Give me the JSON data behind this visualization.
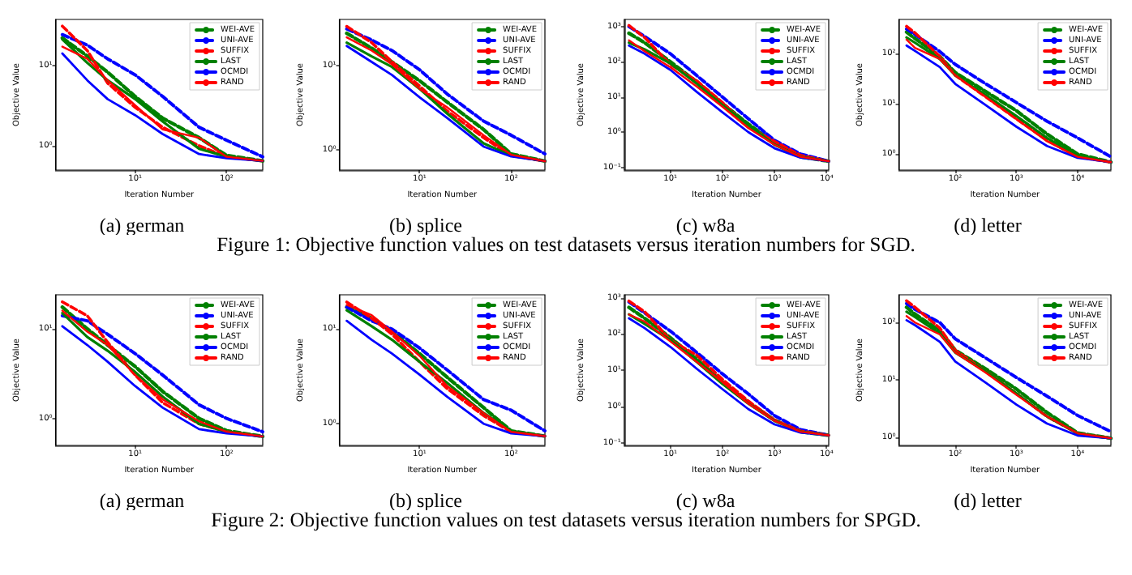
{
  "chart_data": [
    {
      "type": "line",
      "title": "(a) german",
      "xlabel": "Iteration Number",
      "ylabel": "Objective Value",
      "log": "xy",
      "legend": "top right",
      "annotations": [
        "Figure 1: Objective function values on test datasets versus iteration numbers for SGD."
      ],
      "x": [
        1.6,
        3,
        5,
        10,
        20,
        50,
        100,
        248
      ],
      "xlim": [
        1.35,
        248
      ],
      "xticks": [
        {
          "value": 10,
          "label": "10¹"
        },
        {
          "value": 100,
          "label": "10²"
        }
      ],
      "ylim": [
        0.5,
        37
      ],
      "yticks": [
        {
          "value": 1,
          "label": "10⁰"
        },
        {
          "value": 10,
          "label": "10¹"
        }
      ],
      "series": [
        {
          "name": "WEI-AVE",
          "color": "#008000",
          "line_style": "dashed",
          "values": [
            21.8,
            13,
            8.2,
            4.1,
            2.2,
            1.26,
            0.76,
            0.65
          ]
        },
        {
          "name": "UNI-AVE",
          "color": "#0000ff",
          "line_style": "dashed",
          "values": [
            24,
            17.8,
            12,
            7.6,
            4.1,
            1.7,
            1.17,
            0.73
          ]
        },
        {
          "name": "SUFFIX",
          "color": "#ff0000",
          "line_style": "dashed",
          "values": [
            30.6,
            15.2,
            6.0,
            3.0,
            1.7,
            1.0,
            0.73,
            0.65
          ]
        },
        {
          "name": "LAST",
          "color": "#008000",
          "line_style": "solid",
          "values": [
            21,
            10.7,
            6.5,
            3.8,
            2.0,
            0.92,
            0.73,
            0.65
          ]
        },
        {
          "name": "OCMDI",
          "color": "#0000ff",
          "line_style": "solid",
          "values": [
            14,
            6.5,
            3.8,
            2.4,
            1.4,
            0.79,
            0.7,
            0.65
          ]
        },
        {
          "name": "RAND",
          "color": "#ff0000",
          "line_style": "solid",
          "values": [
            17,
            12,
            6.5,
            3.2,
            1.6,
            1.26,
            0.73,
            0.65
          ]
        }
      ]
    },
    {
      "type": "line",
      "title": "(b) splice",
      "xlabel": "Iteration Number",
      "ylabel": "Objective Value",
      "log": "xy",
      "legend": "top right",
      "x": [
        1.6,
        3,
        5,
        10,
        20,
        50,
        100,
        234
      ],
      "xlim": [
        1.33,
        234
      ],
      "xticks": [
        {
          "value": 10,
          "label": "10¹"
        },
        {
          "value": 100,
          "label": "10²"
        }
      ],
      "ylim": [
        0.58,
        35
      ],
      "yticks": [
        {
          "value": 1,
          "label": "10⁰"
        },
        {
          "value": 10,
          "label": "10¹"
        }
      ],
      "series": [
        {
          "name": "WEI-AVE",
          "color": "#008000",
          "line_style": "dashed",
          "values": [
            24,
            16,
            11,
            6.6,
            3.7,
            1.75,
            0.9,
            0.74
          ]
        },
        {
          "name": "UNI-AVE",
          "color": "#0000ff",
          "line_style": "dashed",
          "values": [
            27,
            20,
            15,
            8.9,
            4.6,
            2.2,
            1.5,
            0.9
          ]
        },
        {
          "name": "SUFFIX",
          "color": "#ff0000",
          "line_style": "dashed",
          "values": [
            29,
            18.6,
            11,
            5.7,
            2.9,
            1.4,
            0.86,
            0.74
          ]
        },
        {
          "name": "LAST",
          "color": "#008000",
          "line_style": "solid",
          "values": [
            18.6,
            12.8,
            9.6,
            5.3,
            2.7,
            1.2,
            0.86,
            0.74
          ]
        },
        {
          "name": "OCMDI",
          "color": "#0000ff",
          "line_style": "solid",
          "values": [
            17,
            11,
            7.7,
            4.2,
            2.4,
            1.1,
            0.84,
            0.74
          ]
        },
        {
          "name": "RAND",
          "color": "#ff0000",
          "line_style": "solid",
          "values": [
            21.5,
            15,
            10.3,
            5.3,
            3.2,
            1.5,
            0.88,
            0.74
          ]
        }
      ]
    },
    {
      "type": "line",
      "title": "(c) w8a",
      "xlabel": "Iteration Number",
      "ylabel": "Objective Value",
      "log": "xy",
      "legend": "top right",
      "x": [
        1.6,
        3.2,
        10,
        32,
        100,
        316,
        1000,
        3160,
        11000
      ],
      "xlim": [
        1.3,
        11000
      ],
      "xticks": [
        {
          "value": 10,
          "label": "10¹"
        },
        {
          "value": 100,
          "label": "10²"
        },
        {
          "value": 1000,
          "label": "10³"
        },
        {
          "value": 10000,
          "label": "10⁴"
        }
      ],
      "ylim": [
        0.084,
        1600
      ],
      "yticks": [
        {
          "value": 0.1,
          "label": "10⁻¹"
        },
        {
          "value": 1,
          "label": "10⁰"
        },
        {
          "value": 10,
          "label": "10¹"
        },
        {
          "value": 100,
          "label": "10²"
        },
        {
          "value": 1000,
          "label": "10³"
        }
      ],
      "series": [
        {
          "name": "WEI-AVE",
          "color": "#008000",
          "line_style": "dashed",
          "values": [
            650,
            350,
            100,
            27,
            6.5,
            1.7,
            0.49,
            0.2,
            0.15
          ]
        },
        {
          "name": "UNI-AVE",
          "color": "#0000ff",
          "line_style": "dashed",
          "values": [
            1000,
            530,
            170,
            41,
            10,
            2.4,
            0.59,
            0.24,
            0.15
          ]
        },
        {
          "name": "SUFFIX",
          "color": "#ff0000",
          "line_style": "dashed",
          "values": [
            1080,
            490,
            84,
            29,
            7.0,
            1.4,
            0.55,
            0.22,
            0.15
          ]
        },
        {
          "name": "LAST",
          "color": "#008000",
          "line_style": "solid",
          "values": [
            350,
            225,
            90,
            24,
            5.9,
            1.6,
            0.44,
            0.2,
            0.15
          ]
        },
        {
          "name": "OCMDI",
          "color": "#0000ff",
          "line_style": "solid",
          "values": [
            290,
            170,
            59,
            14,
            3.7,
            1.0,
            0.35,
            0.19,
            0.15
          ]
        },
        {
          "name": "RAND",
          "color": "#ff0000",
          "line_style": "solid",
          "values": [
            410,
            200,
            70,
            20,
            5.3,
            1.3,
            0.44,
            0.2,
            0.15
          ]
        }
      ]
    },
    {
      "type": "line",
      "title": "(d) letter",
      "xlabel": "Iteration Number",
      "ylabel": "Objective Value",
      "log": "xy",
      "legend": "top right",
      "x": [
        16,
        22,
        56,
        100,
        316,
        1000,
        3160,
        10000,
        35000
      ],
      "xlim": [
        12,
        35000
      ],
      "xticks": [
        {
          "value": 100,
          "label": "10²"
        },
        {
          "value": 1000,
          "label": "10³"
        },
        {
          "value": 10000,
          "label": "10⁴"
        }
      ],
      "ylim": [
        0.48,
        480
      ],
      "yticks": [
        {
          "value": 1,
          "label": "10⁰"
        },
        {
          "value": 10,
          "label": "10¹"
        },
        {
          "value": 100,
          "label": "10²"
        }
      ],
      "series": [
        {
          "name": "WEI-AVE",
          "color": "#008000",
          "line_style": "dashed",
          "values": [
            270,
            200,
            88,
            42,
            17.5,
            7.3,
            2.5,
            1.0,
            0.69
          ]
        },
        {
          "name": "UNI-AVE",
          "color": "#0000ff",
          "line_style": "dashed",
          "values": [
            310,
            240,
            110,
            61,
            25,
            10.6,
            4.5,
            2.1,
            0.88
          ]
        },
        {
          "name": "SUFFIX",
          "color": "#ff0000",
          "line_style": "dashed",
          "values": [
            350,
            260,
            88,
            37,
            13.7,
            5.0,
            1.9,
            0.88,
            0.69
          ]
        },
        {
          "name": "LAST",
          "color": "#008000",
          "line_style": "solid",
          "values": [
            210,
            165,
            78,
            37,
            15,
            5.7,
            2.1,
            0.93,
            0.69
          ]
        },
        {
          "name": "OCMDI",
          "color": "#0000ff",
          "line_style": "solid",
          "values": [
            145,
            113,
            54,
            25,
            9.4,
            3.5,
            1.45,
            0.84,
            0.69
          ]
        },
        {
          "name": "RAND",
          "color": "#ff0000",
          "line_style": "solid",
          "values": [
            190,
            130,
            78,
            37,
            13.7,
            5.0,
            1.8,
            0.88,
            0.69
          ]
        }
      ]
    },
    {
      "type": "line",
      "title": "(a) german",
      "xlabel": "Iteration Number",
      "ylabel": "Objective Value",
      "log": "xy",
      "legend": "top right",
      "annotations": [
        "Figure 2: Objective function values on test datasets versus iteration numbers for SPGD."
      ],
      "x": [
        1.6,
        3,
        5,
        10,
        20,
        50,
        100,
        248
      ],
      "xlim": [
        1.35,
        248
      ],
      "xticks": [
        {
          "value": 10,
          "label": "10¹"
        },
        {
          "value": 100,
          "label": "10²"
        }
      ],
      "ylim": [
        0.5,
        24
      ],
      "yticks": [
        {
          "value": 1,
          "label": "10⁰"
        },
        {
          "value": 10,
          "label": "10¹"
        }
      ],
      "series": [
        {
          "name": "WEI-AVE",
          "color": "#008000",
          "line_style": "dashed",
          "values": [
            17.5,
            10,
            6.6,
            3.8,
            2.0,
            1.0,
            0.73,
            0.63
          ]
        },
        {
          "name": "UNI-AVE",
          "color": "#0000ff",
          "line_style": "dashed",
          "values": [
            14,
            12.3,
            8.7,
            5.3,
            3.05,
            1.42,
            1.0,
            0.71
          ]
        },
        {
          "name": "SUFFIX",
          "color": "#ff0000",
          "line_style": "dashed",
          "values": [
            20,
            14,
            7.1,
            3.05,
            1.5,
            0.87,
            0.71,
            0.63
          ]
        },
        {
          "name": "LAST",
          "color": "#008000",
          "line_style": "solid",
          "values": [
            15,
            8.1,
            5.7,
            3.3,
            1.75,
            0.87,
            0.71,
            0.63
          ]
        },
        {
          "name": "OCMDI",
          "color": "#0000ff",
          "line_style": "solid",
          "values": [
            10.7,
            6.6,
            4.3,
            2.3,
            1.32,
            0.76,
            0.68,
            0.63
          ]
        },
        {
          "name": "RAND",
          "color": "#ff0000",
          "line_style": "solid",
          "values": [
            16,
            9.3,
            6.6,
            3.05,
            1.63,
            0.93,
            0.71,
            0.63
          ]
        }
      ]
    },
    {
      "type": "line",
      "title": "(b) splice",
      "xlabel": "Iteration Number",
      "ylabel": "Objective Value",
      "log": "xy",
      "legend": "top right",
      "x": [
        1.6,
        3,
        5,
        10,
        20,
        50,
        100,
        234
      ],
      "xlim": [
        1.33,
        234
      ],
      "xticks": [
        {
          "value": 10,
          "label": "10¹"
        },
        {
          "value": 100,
          "label": "10²"
        }
      ],
      "ylim": [
        0.59,
        23
      ],
      "yticks": [
        {
          "value": 1,
          "label": "10⁰"
        },
        {
          "value": 10,
          "label": "10¹"
        }
      ],
      "series": [
        {
          "name": "WEI-AVE",
          "color": "#008000",
          "line_style": "dashed",
          "values": [
            17,
            13,
            9.4,
            5.5,
            3.1,
            1.48,
            0.84,
            0.74
          ]
        },
        {
          "name": "UNI-AVE",
          "color": "#0000ff",
          "line_style": "dashed",
          "values": [
            17,
            12.2,
            10,
            6.3,
            3.7,
            1.8,
            1.39,
            0.84
          ]
        },
        {
          "name": "SUFFIX",
          "color": "#ff0000",
          "line_style": "dashed",
          "values": [
            19.3,
            13,
            8.8,
            4.5,
            2.35,
            1.22,
            0.82,
            0.74
          ]
        },
        {
          "name": "LAST",
          "color": "#008000",
          "line_style": "solid",
          "values": [
            15.8,
            10.7,
            7.7,
            4.5,
            2.7,
            1.3,
            0.84,
            0.74
          ]
        },
        {
          "name": "OCMDI",
          "color": "#0000ff",
          "line_style": "solid",
          "values": [
            12.2,
            7.7,
            5.5,
            3.3,
            1.93,
            1.0,
            0.79,
            0.74
          ]
        },
        {
          "name": "RAND",
          "color": "#ff0000",
          "line_style": "solid",
          "values": [
            18,
            14,
            9.4,
            5.2,
            2.5,
            1.3,
            0.82,
            0.74
          ]
        }
      ]
    },
    {
      "type": "line",
      "title": "(c) w8a",
      "xlabel": "Iteration Number",
      "ylabel": "Objective Value",
      "log": "xy",
      "legend": "top right",
      "x": [
        1.6,
        3.2,
        10,
        32,
        100,
        316,
        1000,
        3160,
        11000
      ],
      "xlim": [
        1.3,
        11000
      ],
      "xticks": [
        {
          "value": 10,
          "label": "10¹"
        },
        {
          "value": 100,
          "label": "10²"
        },
        {
          "value": 1000,
          "label": "10³"
        },
        {
          "value": 10000,
          "label": "10⁴"
        }
      ],
      "ylim": [
        0.084,
        1200
      ],
      "yticks": [
        {
          "value": 0.1,
          "label": "10⁻¹"
        },
        {
          "value": 1,
          "label": "10⁰"
        },
        {
          "value": 10,
          "label": "10¹"
        },
        {
          "value": 100,
          "label": "10²"
        },
        {
          "value": 1000,
          "label": "10³"
        }
      ],
      "series": [
        {
          "name": "WEI-AVE",
          "color": "#008000",
          "line_style": "dashed",
          "values": [
            540,
            270,
            79,
            20,
            4.7,
            1.27,
            0.42,
            0.2,
            0.16
          ]
        },
        {
          "name": "UNI-AVE",
          "color": "#0000ff",
          "line_style": "dashed",
          "values": [
            760,
            380,
            120,
            31,
            7.9,
            2.2,
            0.56,
            0.23,
            0.16
          ]
        },
        {
          "name": "SUFFIX",
          "color": "#ff0000",
          "line_style": "dashed",
          "values": [
            810,
            410,
            68,
            26,
            5.6,
            1.4,
            0.42,
            0.21,
            0.16
          ]
        },
        {
          "name": "LAST",
          "color": "#008000",
          "line_style": "solid",
          "values": [
            345,
            190,
            68,
            17,
            4.2,
            1.19,
            0.4,
            0.2,
            0.16
          ]
        },
        {
          "name": "OCMDI",
          "color": "#0000ff",
          "line_style": "solid",
          "values": [
            270,
            145,
            44,
            11,
            3.0,
            0.84,
            0.32,
            0.19,
            0.16
          ]
        },
        {
          "name": "RAND",
          "color": "#ff0000",
          "line_style": "solid",
          "values": [
            345,
            220,
            62,
            17,
            4.7,
            1.19,
            0.4,
            0.2,
            0.16
          ]
        }
      ]
    },
    {
      "type": "line",
      "title": "(d) letter",
      "xlabel": "Iteration Number",
      "ylabel": "Objective Value",
      "log": "xy",
      "legend": "top right",
      "x": [
        16,
        22,
        56,
        100,
        316,
        1000,
        3160,
        10000,
        35000
      ],
      "xlim": [
        12,
        35000
      ],
      "xticks": [
        {
          "value": 100,
          "label": "10²"
        },
        {
          "value": 1000,
          "label": "10³"
        },
        {
          "value": 10000,
          "label": "10⁴"
        }
      ],
      "ylim": [
        0.72,
        305
      ],
      "yticks": [
        {
          "value": 1,
          "label": "10⁰"
        },
        {
          "value": 10,
          "label": "10¹"
        },
        {
          "value": 100,
          "label": "10²"
        }
      ],
      "series": [
        {
          "name": "WEI-AVE",
          "color": "#008000",
          "line_style": "dashed",
          "values": [
            185,
            140,
            72,
            33,
            15.5,
            6.9,
            2.7,
            1.19,
            0.96
          ]
        },
        {
          "name": "UNI-AVE",
          "color": "#0000ff",
          "line_style": "dashed",
          "values": [
            215,
            170,
            100,
            52,
            24,
            11,
            5.2,
            2.4,
            1.25
          ]
        },
        {
          "name": "SUFFIX",
          "color": "#ff0000",
          "line_style": "dashed",
          "values": [
            240,
            185,
            80,
            33,
            13.9,
            5.8,
            2.3,
            1.17,
            0.96
          ]
        },
        {
          "name": "LAST",
          "color": "#008000",
          "line_style": "solid",
          "values": [
            155,
            125,
            64,
            30,
            13.9,
            5.8,
            2.3,
            1.17,
            0.96
          ]
        },
        {
          "name": "OCMDI",
          "color": "#0000ff",
          "line_style": "solid",
          "values": [
            110,
            90,
            46,
            21,
            8.9,
            3.7,
            1.73,
            1.07,
            0.96
          ]
        },
        {
          "name": "RAND",
          "color": "#ff0000",
          "line_style": "solid",
          "values": [
            130,
            100,
            62,
            30,
            13.3,
            5.5,
            2.3,
            1.17,
            0.96
          ]
        }
      ]
    }
  ]
}
